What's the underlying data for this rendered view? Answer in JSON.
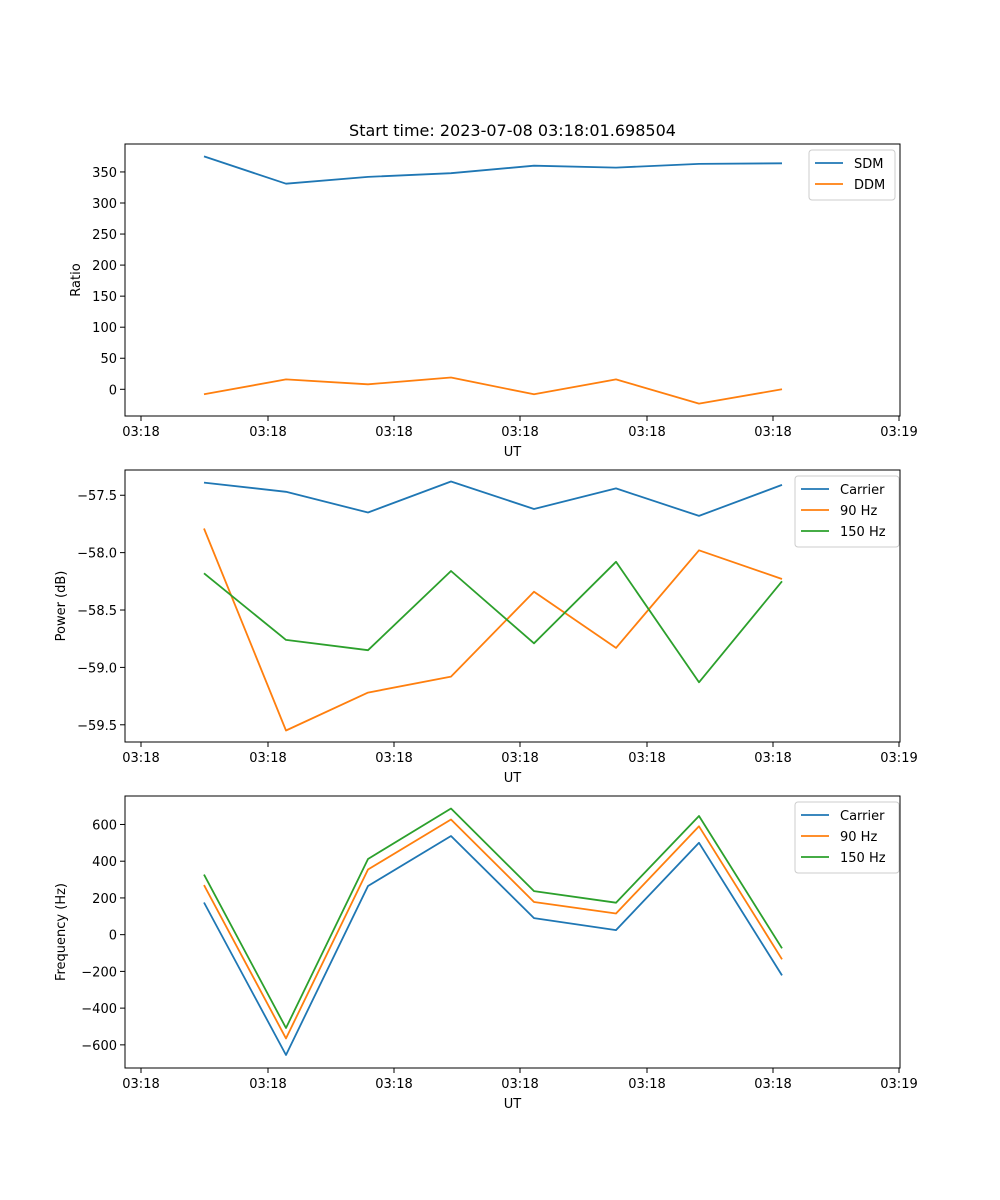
{
  "chart_data": [
    {
      "type": "line",
      "title": "Start time: 2023-07-08 03:18:01.698504",
      "xlabel": "UT",
      "ylabel": "Ratio",
      "xticks": [
        "03:18",
        "03:18",
        "03:18",
        "03:18",
        "03:18",
        "03:18",
        "03:19"
      ],
      "yticks": [
        "0",
        "50",
        "100",
        "150",
        "200",
        "250",
        "300",
        "350"
      ],
      "ylim": [
        -43,
        395
      ],
      "legend_position": "top-right",
      "series": [
        {
          "name": "SDM",
          "color": "#1f77b4",
          "values": [
            375,
            331,
            342,
            348,
            360,
            357,
            363,
            364
          ]
        },
        {
          "name": "DDM",
          "color": "#ff7f0e",
          "values": [
            -8,
            16,
            8,
            19,
            -8,
            16,
            -23,
            0
          ]
        }
      ]
    },
    {
      "type": "line",
      "title": "",
      "xlabel": "UT",
      "ylabel": "Power (dB)",
      "xticks": [
        "03:18",
        "03:18",
        "03:18",
        "03:18",
        "03:18",
        "03:18",
        "03:19"
      ],
      "yticks": [
        "−57.5",
        "−58.0",
        "−58.5",
        "−59.0",
        "−59.5"
      ],
      "ylim": [
        -59.65,
        -57.28
      ],
      "legend_position": "top-right",
      "series": [
        {
          "name": "Carrier",
          "color": "#1f77b4",
          "values": [
            -57.39,
            -57.47,
            -57.65,
            -57.38,
            -57.62,
            -57.44,
            -57.68,
            -57.41
          ]
        },
        {
          "name": "90 Hz",
          "color": "#ff7f0e",
          "values": [
            -57.79,
            -59.55,
            -59.22,
            -59.08,
            -58.34,
            -58.83,
            -57.98,
            -58.23
          ]
        },
        {
          "name": "150 Hz",
          "color": "#2ca02c",
          "values": [
            -58.18,
            -58.76,
            -58.85,
            -58.16,
            -58.79,
            -58.08,
            -59.13,
            -58.25
          ]
        }
      ]
    },
    {
      "type": "line",
      "title": "",
      "xlabel": "UT",
      "ylabel": "Frequency (Hz)",
      "xticks": [
        "03:18",
        "03:18",
        "03:18",
        "03:18",
        "03:18",
        "03:18",
        "03:19"
      ],
      "yticks": [
        "−600",
        "−400",
        "−200",
        "0",
        "200",
        "400",
        "600"
      ],
      "ylim": [
        -726,
        755
      ],
      "legend_position": "top-right",
      "series": [
        {
          "name": "Carrier",
          "color": "#1f77b4",
          "values": [
            175,
            -655,
            265,
            537,
            90,
            25,
            500,
            -222
          ]
        },
        {
          "name": "90 Hz",
          "color": "#ff7f0e",
          "values": [
            270,
            -565,
            355,
            627,
            178,
            115,
            590,
            -134
          ]
        },
        {
          "name": "150 Hz",
          "color": "#2ca02c",
          "values": [
            327,
            -508,
            412,
            687,
            237,
            174,
            646,
            -74
          ]
        }
      ]
    }
  ]
}
